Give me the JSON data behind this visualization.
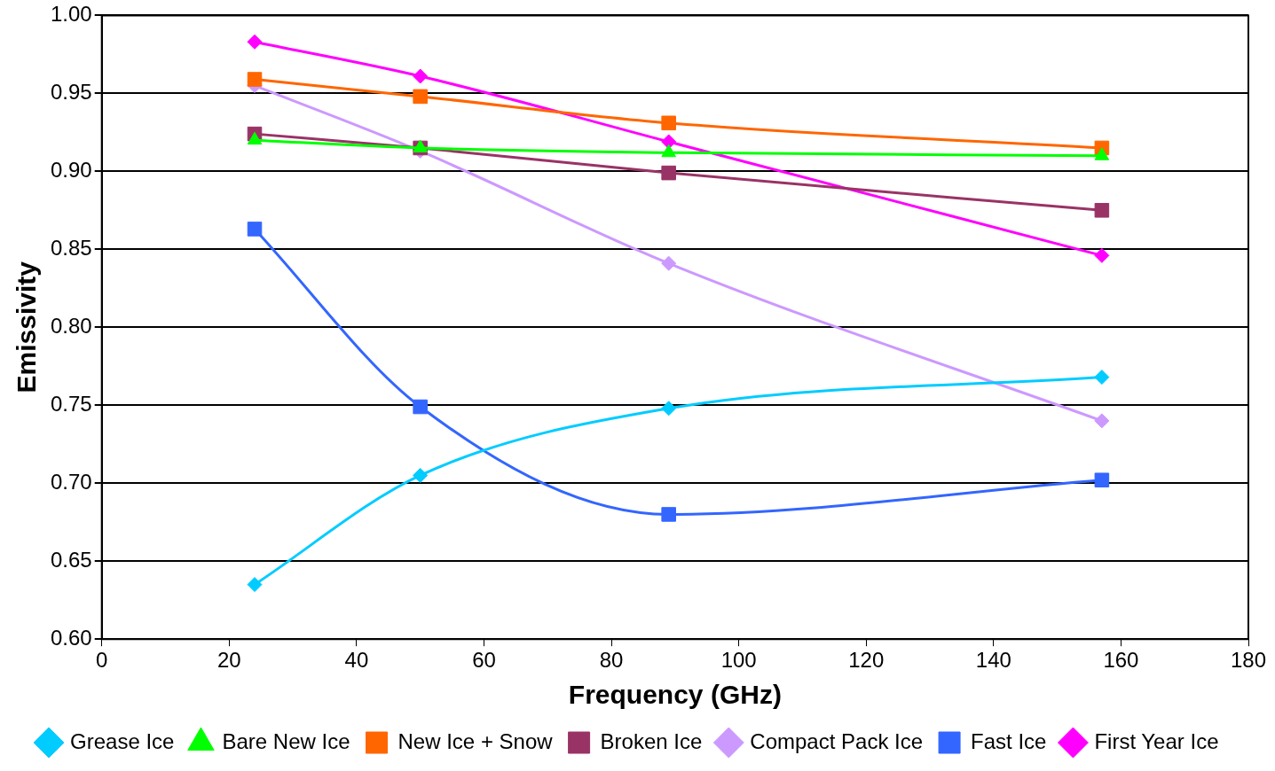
{
  "chart_data": {
    "type": "line",
    "xlabel": "Frequency (GHz)",
    "ylabel": "Emissivity",
    "x": [
      24,
      50,
      89,
      157
    ],
    "series": [
      {
        "name": "Grease Ice",
        "color": "#00ccff",
        "marker": "diamond",
        "values": [
          0.635,
          0.705,
          0.748,
          0.768
        ]
      },
      {
        "name": "Bare New Ice",
        "color": "#00ff00",
        "marker": "triangle",
        "values": [
          0.92,
          0.915,
          0.912,
          0.91
        ]
      },
      {
        "name": "New Ice + Snow",
        "color": "#ff6600",
        "marker": "square",
        "values": [
          0.959,
          0.948,
          0.931,
          0.915
        ]
      },
      {
        "name": "Broken Ice",
        "color": "#993366",
        "marker": "square",
        "values": [
          0.924,
          0.915,
          0.899,
          0.875
        ]
      },
      {
        "name": "Compact Pack Ice",
        "color": "#cc99ff",
        "marker": "diamond",
        "values": [
          0.955,
          0.913,
          0.841,
          0.74
        ]
      },
      {
        "name": "Fast Ice",
        "color": "#3366ff",
        "marker": "square",
        "values": [
          0.863,
          0.749,
          0.68,
          0.702
        ]
      },
      {
        "name": "First Year Ice",
        "color": "#ff00ff",
        "marker": "diamond",
        "values": [
          0.983,
          0.961,
          0.919,
          0.846
        ]
      }
    ],
    "xlim": [
      0,
      180
    ],
    "xticks": [
      0,
      20,
      40,
      60,
      80,
      100,
      120,
      140,
      160,
      180
    ],
    "ylim": [
      0.6,
      1.0
    ],
    "yticks": [
      {
        "value": 0.6,
        "label": "0.60"
      },
      {
        "value": 0.65,
        "label": "0.65"
      },
      {
        "value": 0.7,
        "label": "0.70"
      },
      {
        "value": 0.75,
        "label": "0.75"
      },
      {
        "value": 0.8,
        "label": "0.80"
      },
      {
        "value": 0.85,
        "label": "0.85"
      },
      {
        "value": 0.9,
        "label": "0.90"
      },
      {
        "value": 0.95,
        "label": "0.95"
      },
      {
        "value": 1.0,
        "label": "1.00"
      }
    ],
    "grid": "y",
    "legend": "bottom"
  }
}
